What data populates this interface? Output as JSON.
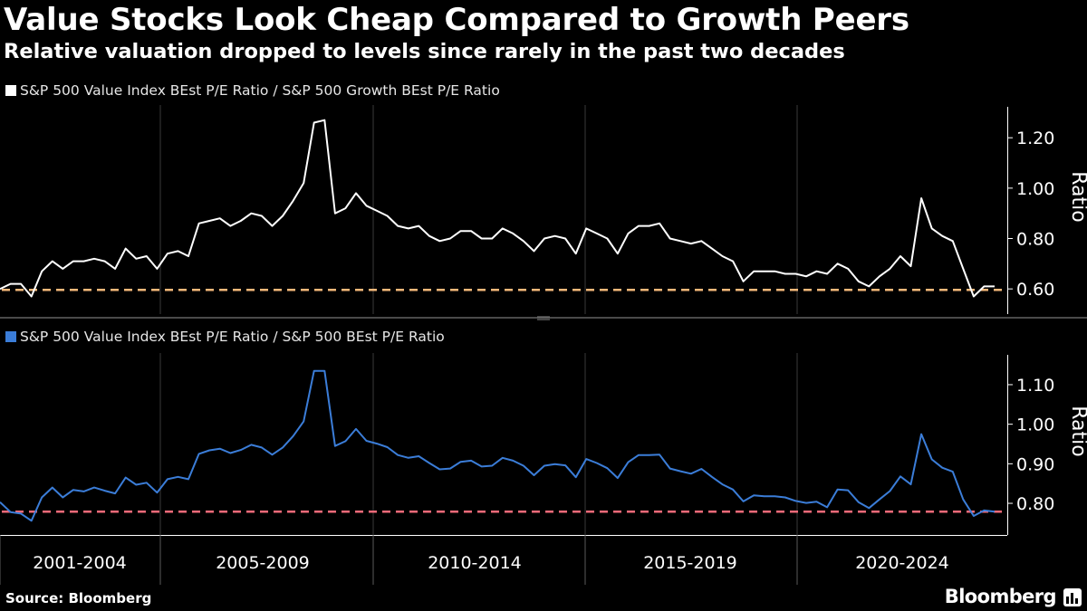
{
  "header": {
    "title": "Value Stocks Look Cheap Compared to Growth Peers",
    "subtitle": "Relative valuation dropped to levels since rarely in the past two decades"
  },
  "footer": {
    "source": "Source: Bloomberg",
    "brand": "Bloomberg"
  },
  "colors": {
    "background": "#000000",
    "top_line": "#ffffff",
    "bottom_line": "#3b7dd8",
    "top_reference": "#f5b87a",
    "bottom_reference": "#f06a78",
    "grid": "#3a3a3a"
  },
  "chart_data": [
    {
      "type": "line",
      "legend": "S&P 500 Value Index BEst P/E Ratio / S&P 500 Growth BEst P/E Ratio",
      "ylabel": "Ratio",
      "ylim": [
        0.5,
        1.33
      ],
      "yticks": [
        "0.60",
        "0.80",
        "1.00",
        "1.20"
      ],
      "grid": true,
      "legend_position": "top-left",
      "reference_line": 0.596,
      "series": [
        {
          "values": [
            0.6,
            0.62,
            0.62,
            0.57,
            0.67,
            0.71,
            0.68,
            0.71,
            0.71,
            0.72,
            0.71,
            0.68,
            0.76,
            0.72,
            0.73,
            0.68,
            0.74,
            0.75,
            0.73,
            0.86,
            0.87,
            0.88,
            0.85,
            0.87,
            0.9,
            0.89,
            0.85,
            0.89,
            0.95,
            1.02,
            1.26,
            1.27,
            0.9,
            0.92,
            0.98,
            0.93,
            0.91,
            0.89,
            0.85,
            0.84,
            0.85,
            0.81,
            0.79,
            0.8,
            0.83,
            0.83,
            0.8,
            0.8,
            0.84,
            0.82,
            0.79,
            0.75,
            0.8,
            0.81,
            0.8,
            0.74,
            0.84,
            0.82,
            0.8,
            0.74,
            0.82,
            0.85,
            0.85,
            0.86,
            0.8,
            0.79,
            0.78,
            0.79,
            0.76,
            0.73,
            0.71,
            0.63,
            0.67,
            0.67,
            0.67,
            0.66,
            0.66,
            0.65,
            0.67,
            0.66,
            0.7,
            0.68,
            0.63,
            0.61,
            0.65,
            0.68,
            0.73,
            0.69,
            0.96,
            0.84,
            0.81,
            0.79,
            0.68,
            0.57,
            0.61,
            0.61
          ]
        }
      ]
    },
    {
      "type": "line",
      "legend": "S&P 500 Value Index BEst P/E Ratio / S&P 500 BEst P/E Ratio",
      "ylabel": "Ratio",
      "ylim": [
        0.72,
        1.18
      ],
      "yticks": [
        "0.80",
        "0.90",
        "1.00",
        "1.10"
      ],
      "grid": true,
      "legend_position": "top-left",
      "reference_line": 0.779,
      "series": [
        {
          "values": [
            0.803,
            0.778,
            0.774,
            0.756,
            0.815,
            0.84,
            0.815,
            0.834,
            0.83,
            0.84,
            0.832,
            0.825,
            0.865,
            0.847,
            0.852,
            0.827,
            0.861,
            0.867,
            0.861,
            0.925,
            0.934,
            0.938,
            0.927,
            0.935,
            0.948,
            0.941,
            0.923,
            0.941,
            0.97,
            1.007,
            1.135,
            1.135,
            0.945,
            0.957,
            0.988,
            0.958,
            0.951,
            0.942,
            0.922,
            0.915,
            0.919,
            0.902,
            0.886,
            0.888,
            0.905,
            0.908,
            0.893,
            0.895,
            0.915,
            0.908,
            0.895,
            0.871,
            0.895,
            0.899,
            0.896,
            0.866,
            0.912,
            0.902,
            0.889,
            0.864,
            0.904,
            0.922,
            0.922,
            0.923,
            0.888,
            0.881,
            0.875,
            0.887,
            0.867,
            0.848,
            0.835,
            0.805,
            0.82,
            0.818,
            0.818,
            0.815,
            0.806,
            0.801,
            0.804,
            0.79,
            0.835,
            0.833,
            0.803,
            0.788,
            0.81,
            0.831,
            0.868,
            0.848,
            0.975,
            0.911,
            0.89,
            0.88,
            0.81,
            0.768,
            0.782,
            0.779
          ]
        }
      ]
    }
  ],
  "x_axis": {
    "tick_labels": [
      "2001-2004",
      "2005-2009",
      "2010-2014",
      "2015-2019",
      "2020-2024"
    ]
  }
}
